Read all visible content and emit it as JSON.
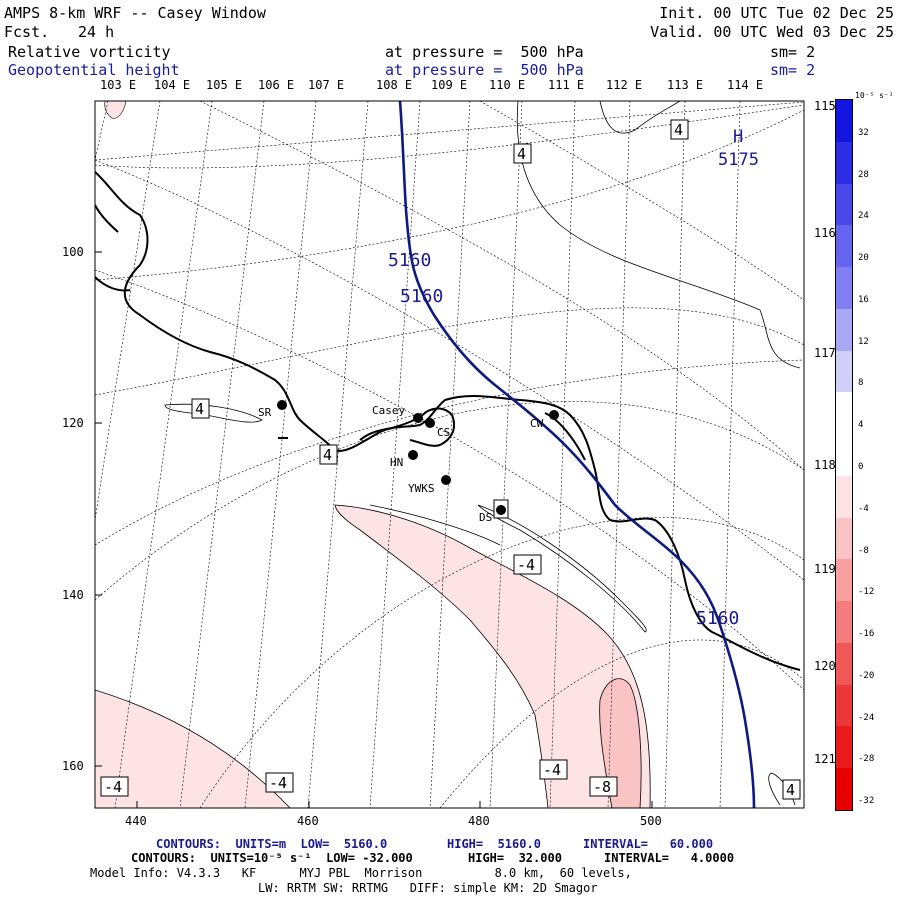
{
  "header": {
    "title": "AMPS 8-km WRF -- Casey Window",
    "fcst_label": "Fcst.",
    "fcst_value": "24 h",
    "init": "Init. 00 UTC Tue 02 Dec 25",
    "valid": "Valid. 00 UTC Wed 03 Dec 25",
    "field1_name": "Relative vorticity",
    "field1_level": "at pressure =  500 hPa",
    "field1_sm": "sm= 2",
    "field2_name": "Geopotential height",
    "field2_level": "at pressure =  500 hPa",
    "field2_sm": "sm= 2"
  },
  "map": {
    "lon_labels_top": [
      "103 E",
      "104 E",
      "105 E",
      "106 E",
      "107 E",
      "108 E",
      "109 E",
      "110 E",
      "111 E",
      "112 E",
      "113 E",
      "114 E"
    ],
    "lat_labels_right": [
      "115 E",
      "116 E",
      "117 E",
      "118 E",
      "119 E",
      "120 E",
      "121 E"
    ],
    "y_ticks": [
      "100",
      "120",
      "140",
      "160"
    ],
    "x_ticks": [
      "440",
      "460",
      "480",
      "500"
    ],
    "stations": [
      {
        "name": "SR"
      },
      {
        "name": "Casey"
      },
      {
        "name": "CS"
      },
      {
        "name": "HN"
      },
      {
        "name": "YWKS"
      },
      {
        "name": "DS"
      },
      {
        "name": "CW"
      }
    ],
    "height_labels": [
      "5160",
      "5160",
      "5160"
    ],
    "high_label": "H",
    "high_value": "5175",
    "vort_labels": [
      "4",
      "4",
      "4",
      "4",
      "4",
      "-4",
      "-4",
      "-4",
      "-4",
      "-8"
    ]
  },
  "colorbar": {
    "unit": "10⁻⁵ s⁻¹",
    "levels": [
      "32",
      "28",
      "24",
      "20",
      "16",
      "12",
      "8",
      "4",
      "0",
      "-4",
      "-8",
      "-12",
      "-16",
      "-20",
      "-24",
      "-28",
      "-32"
    ],
    "colors": [
      "#1515e0",
      "#2e2ee6",
      "#4848ea",
      "#6464ee",
      "#8080f2",
      "#a8a8f6",
      "#d0d0fa",
      "#ffffff",
      "#ffffff",
      "#fde3e3",
      "#fbc4c4",
      "#f8a0a0",
      "#f47c7c",
      "#f05858",
      "#ec3838",
      "#e81a1a",
      "#e60000"
    ]
  },
  "footer": {
    "line1_a": "CONTOURS:  UNITS=m  LOW=  5160.0",
    "line1_b": "HIGH=  5160.0",
    "line1_c": "INTERVAL=   60.000",
    "line2_a": "CONTOURS:  UNITS=10⁻⁵ s⁻¹  LOW= -32.000",
    "line2_b": "HIGH=  32.000",
    "line2_c": "INTERVAL=   4.0000",
    "line3": "Model Info: V4.3.3   KF      MYJ PBL  Morrison          8.0 km,  60 levels,",
    "line4": "LW: RRTM SW: RRTMG   DIFF: simple KM: 2D Smagor"
  }
}
